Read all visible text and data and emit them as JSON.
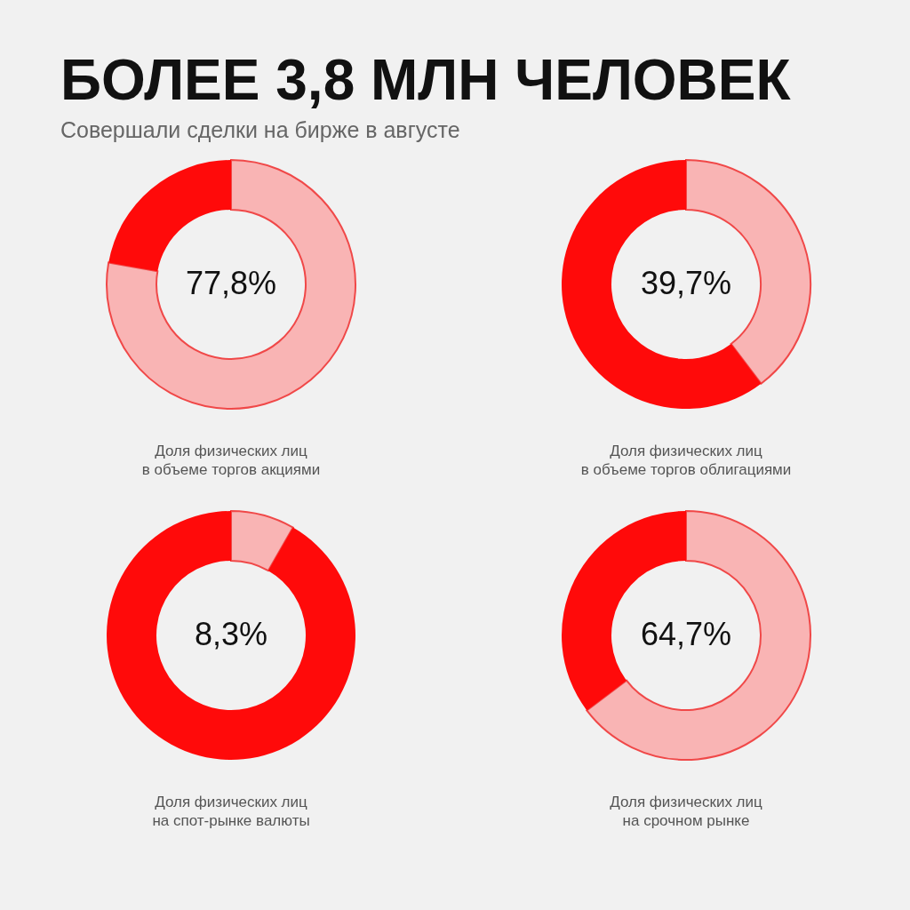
{
  "chart_data": [
    {
      "type": "donut",
      "title": "БОЛЕЕ 3,8 МЛН ЧЕЛОВЕК",
      "subtitle": "Совершали сделки на бирже в августе",
      "categories": [
        null,
        null
      ],
      "values": [
        77.8,
        22.2
      ],
      "colors": [
        "#f9b4b4",
        "#ff0a0a"
      ],
      "value_labels": [
        "77,8%",
        null
      ],
      "annotations": [
        "Доля физических лиц\nв объеме торгов акциями"
      ]
    },
    {
      "type": "donut",
      "categories": [
        null,
        null
      ],
      "values": [
        39.7,
        60.3
      ],
      "colors": [
        "#f9b4b4",
        "#ff0a0a"
      ],
      "value_labels": [
        "39,7%",
        null
      ],
      "annotations": [
        "Доля физических лиц\nв объеме торгов облигациями"
      ]
    },
    {
      "type": "donut",
      "categories": [
        null,
        null
      ],
      "values": [
        8.3,
        91.7
      ],
      "colors": [
        "#f9b4b4",
        "#ff0a0a"
      ],
      "value_labels": [
        "8,3%",
        null
      ],
      "annotations": [
        "Доля физических лиц\nна спот-рынке валюты"
      ]
    },
    {
      "type": "donut",
      "categories": [
        null,
        null
      ],
      "values": [
        64.7,
        35.3
      ],
      "colors": [
        "#f9b4b4",
        "#ff0a0a"
      ],
      "value_labels": [
        "64,7%",
        null
      ],
      "annotations": [
        "Доля физических лиц\nна срочном рынке"
      ]
    }
  ]
}
